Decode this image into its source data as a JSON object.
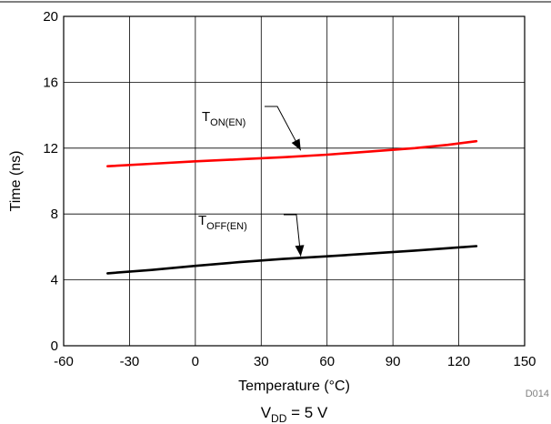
{
  "chart_data": {
    "type": "line",
    "xlabel": "Temperature (°C)",
    "ylabel": "Time (ns)",
    "xlim": [
      -60,
      150
    ],
    "ylim": [
      0,
      20
    ],
    "x_ticks": [
      -60,
      -30,
      0,
      30,
      60,
      90,
      120,
      150
    ],
    "y_ticks": [
      0,
      4,
      8,
      12,
      16,
      20
    ],
    "grid": true,
    "series": [
      {
        "label_main": "T",
        "label_sub": "ON(EN)",
        "color": "#ff0000",
        "x": [
          -40,
          -20,
          0,
          20,
          40,
          60,
          80,
          100,
          115,
          128
        ],
        "y": [
          10.9,
          11.05,
          11.2,
          11.32,
          11.45,
          11.6,
          11.8,
          12.0,
          12.2,
          12.42
        ]
      },
      {
        "label_main": "T",
        "label_sub": "OFF(EN)",
        "color": "#000000",
        "x": [
          -40,
          -20,
          0,
          20,
          40,
          60,
          80,
          100,
          115,
          128
        ],
        "y": [
          4.4,
          4.6,
          4.85,
          5.08,
          5.27,
          5.43,
          5.6,
          5.78,
          5.92,
          6.05
        ]
      }
    ],
    "condition": {
      "main": "V",
      "sub": "DD",
      "rest": " = 5 V"
    },
    "figure_id": "D014"
  }
}
